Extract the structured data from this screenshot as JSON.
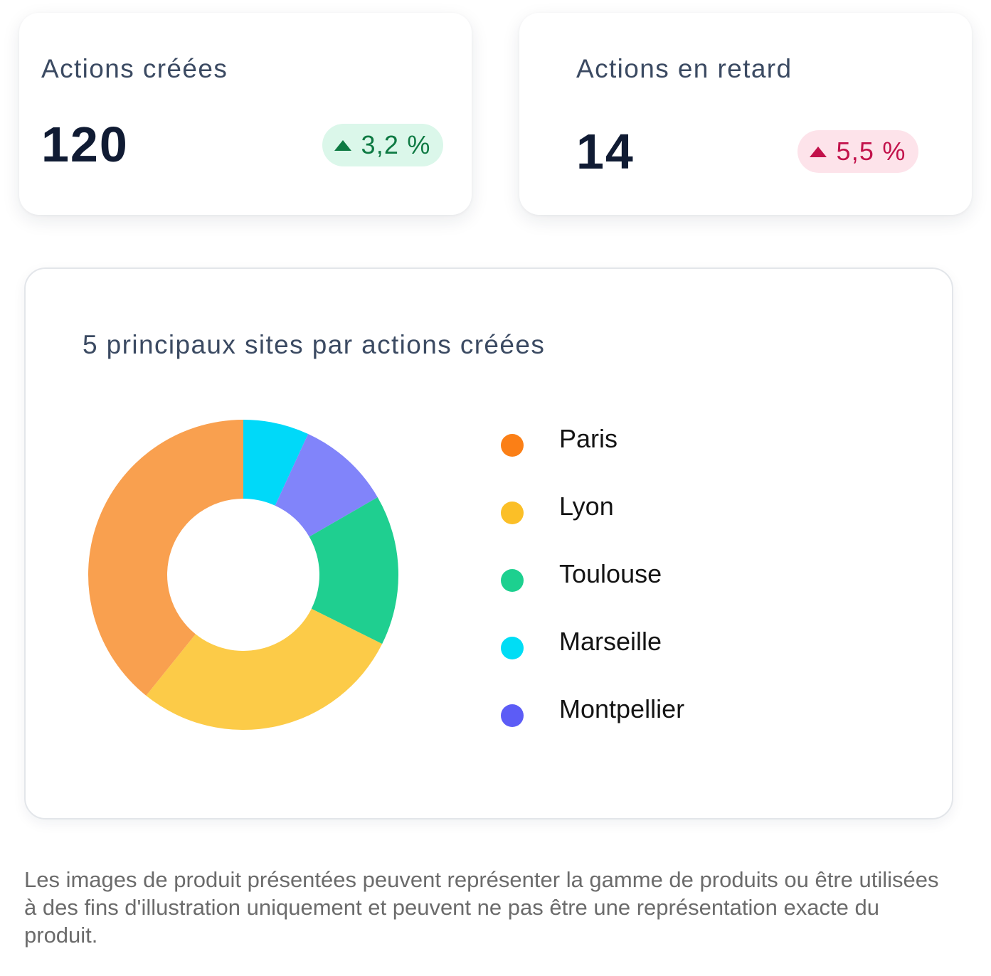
{
  "kpis": {
    "created": {
      "title": "Actions créées",
      "value": "120",
      "delta": "3,2 %",
      "trend": "up",
      "badge_bg": "#dbf7ea",
      "badge_fg": "#0e7a43"
    },
    "late": {
      "title": "Actions en retard",
      "value": "14",
      "delta": "5,5 %",
      "trend": "up",
      "badge_bg": "#fde3ea",
      "badge_fg": "#c2124b"
    }
  },
  "chart_data": {
    "type": "pie",
    "variant": "donut",
    "title": "5 principaux sites par actions créées",
    "categories": [
      "Paris",
      "Lyon",
      "Toulouse",
      "Marseille",
      "Montpellier"
    ],
    "values": [
      40,
      29,
      16,
      7,
      10
    ],
    "unit": "%",
    "slice_colors": [
      "#f9a04f",
      "#fccb48",
      "#1fcf90",
      "#00d9f9",
      "#8184fa"
    ],
    "legend_colors": [
      "#fb7f16",
      "#fbbf27",
      "#1dd08f",
      "#00ddf5",
      "#5c5cf6"
    ],
    "legend": "right"
  },
  "disclaimer": "Les images de produit présentées peuvent représenter la gamme de produits ou être utilisées à des fins d'illustration uniquement et peuvent ne pas être une représentation exacte du produit."
}
